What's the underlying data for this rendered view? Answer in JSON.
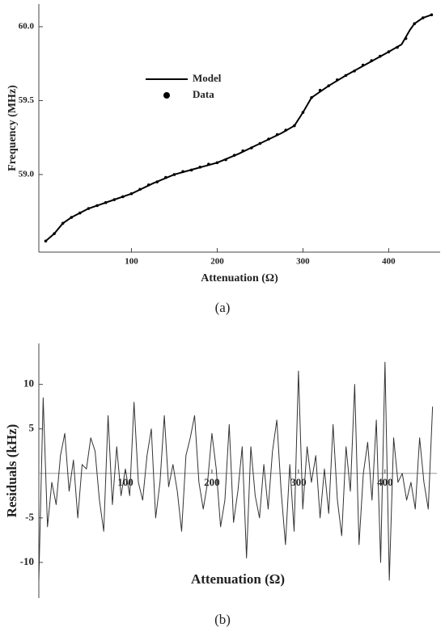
{
  "chart_data": [
    {
      "type": "line",
      "caption": "(a)",
      "xlabel": "Attenuation (Ω)",
      "ylabel": "Frequency (MHz)",
      "xlim": [
        -8,
        460
      ],
      "ylim": [
        58.475,
        60.153
      ],
      "xticks": [
        100,
        200,
        300,
        400
      ],
      "yticks": [
        {
          "value": 59,
          "label": "59.0"
        },
        59.5,
        {
          "value": 60,
          "label": "60.0"
        }
      ],
      "series": [
        {
          "name": "Model",
          "style": "line",
          "color": "#000000",
          "x": [
            0,
            10,
            20,
            30,
            50,
            75,
            100,
            125,
            150,
            175,
            200,
            225,
            250,
            275,
            290,
            300,
            310,
            330,
            350,
            375,
            400,
            415,
            425,
            430,
            440,
            450
          ],
          "values": [
            58.55,
            58.6,
            58.67,
            58.71,
            58.77,
            58.82,
            58.87,
            58.94,
            59.0,
            59.04,
            59.08,
            59.14,
            59.21,
            59.28,
            59.33,
            59.42,
            59.52,
            59.6,
            59.67,
            59.75,
            59.83,
            59.88,
            59.98,
            60.02,
            60.06,
            60.08
          ]
        },
        {
          "name": "Data",
          "style": "points",
          "color": "#000000",
          "x": [
            0,
            10,
            20,
            30,
            40,
            50,
            60,
            70,
            80,
            90,
            100,
            110,
            120,
            130,
            140,
            150,
            160,
            170,
            180,
            190,
            200,
            210,
            220,
            230,
            240,
            250,
            260,
            270,
            280,
            290,
            300,
            310,
            320,
            330,
            340,
            350,
            360,
            370,
            380,
            390,
            400,
            410,
            420,
            430,
            440,
            450
          ],
          "values": [
            58.55,
            58.6,
            58.67,
            58.71,
            58.74,
            58.77,
            58.79,
            58.81,
            58.83,
            58.85,
            58.87,
            58.9,
            58.93,
            58.95,
            58.98,
            59.0,
            59.02,
            59.03,
            59.05,
            59.07,
            59.08,
            59.1,
            59.13,
            59.16,
            59.18,
            59.21,
            59.24,
            59.27,
            59.3,
            59.33,
            59.42,
            59.52,
            59.57,
            59.6,
            59.64,
            59.67,
            59.7,
            59.74,
            59.77,
            59.8,
            59.83,
            59.86,
            59.92,
            60.02,
            60.06,
            60.08
          ]
        }
      ]
    },
    {
      "type": "line",
      "caption": "(b)",
      "xlabel": "Attenuation (Ω)",
      "ylabel": "Residuals (kHz)",
      "xlim": [
        0,
        460
      ],
      "ylim": [
        -14,
        14.6
      ],
      "xticks": [
        100,
        200,
        300,
        400
      ],
      "yticks": [
        -10,
        -5,
        5,
        10
      ],
      "series": [
        {
          "name": "Residuals",
          "style": "line",
          "color": "#333333",
          "x": [
            0,
            5,
            10,
            15,
            20,
            25,
            30,
            35,
            40,
            45,
            50,
            55,
            60,
            65,
            70,
            75,
            80,
            85,
            90,
            95,
            100,
            105,
            110,
            115,
            120,
            125,
            130,
            135,
            140,
            145,
            150,
            155,
            160,
            165,
            170,
            175,
            180,
            185,
            190,
            195,
            200,
            205,
            210,
            215,
            220,
            225,
            230,
            235,
            240,
            245,
            250,
            255,
            260,
            265,
            270,
            275,
            280,
            285,
            290,
            295,
            300,
            305,
            310,
            315,
            320,
            325,
            330,
            335,
            340,
            345,
            350,
            355,
            360,
            365,
            370,
            375,
            380,
            385,
            390,
            395,
            400,
            405,
            410,
            415,
            420,
            425,
            430,
            435,
            440,
            445,
            450,
            455
          ],
          "values": [
            -12,
            8.5,
            -6,
            -1,
            -3.5,
            2,
            4.5,
            -2,
            1.5,
            -5,
            1,
            0.5,
            4,
            2.5,
            -3,
            -6.5,
            6.5,
            -3.5,
            3,
            -2.5,
            0.5,
            -2.5,
            8,
            -1,
            -3,
            2,
            5,
            -5,
            -1,
            6.5,
            -1.5,
            1,
            -2,
            -6.5,
            2,
            4,
            6.5,
            -1,
            -4,
            -1,
            4.5,
            0.5,
            -6,
            -3,
            5.5,
            -5.5,
            -2,
            3,
            -9.5,
            3,
            -2.5,
            -5,
            1,
            -4,
            2.5,
            6,
            -2,
            -8,
            1,
            -6.5,
            11.5,
            -4,
            3,
            -1,
            2,
            -5,
            0.5,
            -4.5,
            5.5,
            -3,
            -7,
            3,
            -2,
            10,
            -8,
            0,
            3.5,
            -3,
            6,
            -10,
            12.5,
            -12,
            4,
            -1,
            0,
            -3,
            -1,
            -4,
            4,
            -1,
            -4,
            7.5
          ]
        }
      ]
    }
  ]
}
